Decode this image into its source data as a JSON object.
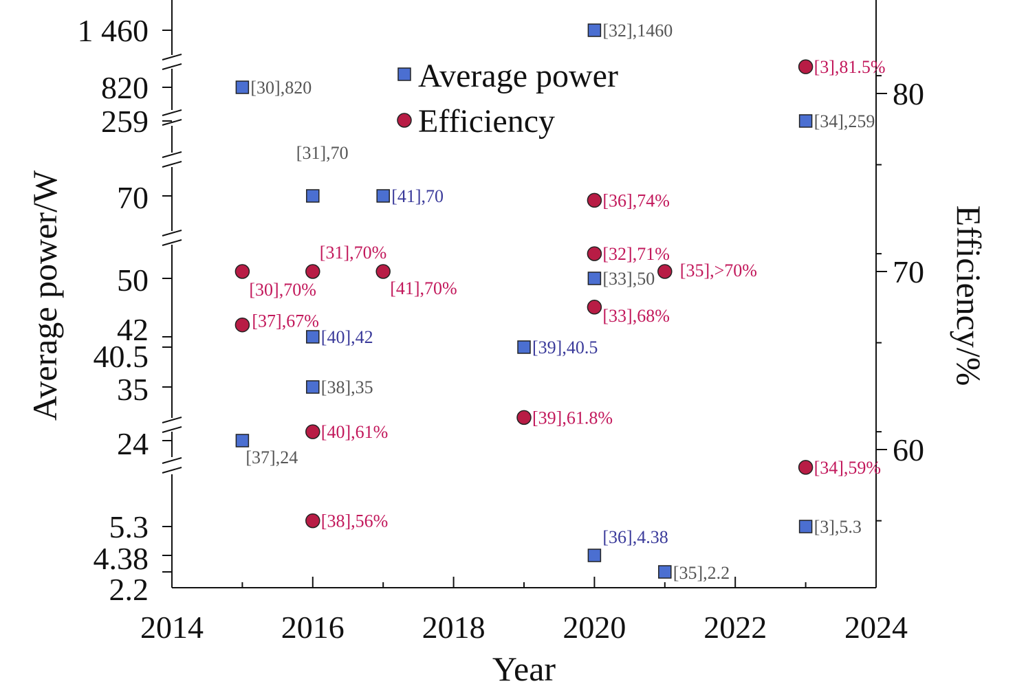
{
  "chart_data": {
    "type": "scatter",
    "title": "",
    "xlabel": "Year",
    "ylabel_left": "Average power/W",
    "ylabel_right": "Efficiency/%",
    "xlim": [
      2014,
      2024
    ],
    "x_ticks": [
      2014,
      2016,
      2018,
      2020,
      2022,
      2024
    ],
    "y_left_scale": "piecewise with axis breaks",
    "y_left_ticks": [
      "1 460",
      "820",
      "259",
      "70",
      "50",
      "42",
      "40.5",
      "35",
      "24",
      "5.3",
      "4.38",
      "2.2"
    ],
    "y_right_ticks": [
      60,
      70,
      80
    ],
    "y_right_range": [
      58,
      83
    ],
    "legend_position": "top-center",
    "colors": {
      "average_power": "#4b6fd1",
      "efficiency": "#b81c45",
      "power_label_gray": "#555555",
      "power_label_blue": "#3a3a9a",
      "efficiency_label": "#c2185b"
    },
    "series": [
      {
        "name": "Average power",
        "axis": "left",
        "marker": "square",
        "points": [
          {
            "x": 2015,
            "y": 820,
            "label": "[30],820"
          },
          {
            "x": 2016,
            "y": 70,
            "label": "[31],70"
          },
          {
            "x": 2017,
            "y": 70,
            "label": "[41],70"
          },
          {
            "x": 2020,
            "y": 1460,
            "label": "[32],1460"
          },
          {
            "x": 2023,
            "y": 259,
            "label": "[34],259"
          },
          {
            "x": 2020,
            "y": 50,
            "label": "[33],50"
          },
          {
            "x": 2016,
            "y": 42,
            "label": "[40],42"
          },
          {
            "x": 2019,
            "y": 40.5,
            "label": "[39],40.5"
          },
          {
            "x": 2016,
            "y": 35,
            "label": "[38],35"
          },
          {
            "x": 2015,
            "y": 24,
            "label": "[37],24"
          },
          {
            "x": 2020,
            "y": 4.38,
            "label": "[36],4.38"
          },
          {
            "x": 2021,
            "y": 2.2,
            "label": "[35],2.2"
          },
          {
            "x": 2023,
            "y": 5.3,
            "label": "[3],5.3"
          }
        ]
      },
      {
        "name": "Efficiency",
        "axis": "right",
        "marker": "circle",
        "points": [
          {
            "x": 2023,
            "y": 81.5,
            "label": "[3],81.5%"
          },
          {
            "x": 2020,
            "y": 74,
            "label": "[36],74%"
          },
          {
            "x": 2020,
            "y": 71,
            "label": "[32],71%"
          },
          {
            "x": 2016,
            "y": 70,
            "label": "[31],70%"
          },
          {
            "x": 2015,
            "y": 70,
            "label": "[30],70%"
          },
          {
            "x": 2017,
            "y": 70,
            "label": "[41],70%"
          },
          {
            "x": 2021,
            "y": 70,
            "label": "[35],>70%"
          },
          {
            "x": 2020,
            "y": 68,
            "label": "[33],68%"
          },
          {
            "x": 2015,
            "y": 67,
            "label": "[37],67%"
          },
          {
            "x": 2019,
            "y": 61.8,
            "label": "[39],61.8%"
          },
          {
            "x": 2016,
            "y": 61,
            "label": "[40],61%"
          },
          {
            "x": 2023,
            "y": 59,
            "label": "[34],59%"
          },
          {
            "x": 2016,
            "y": 56,
            "label": "[38],56%"
          }
        ]
      }
    ]
  }
}
